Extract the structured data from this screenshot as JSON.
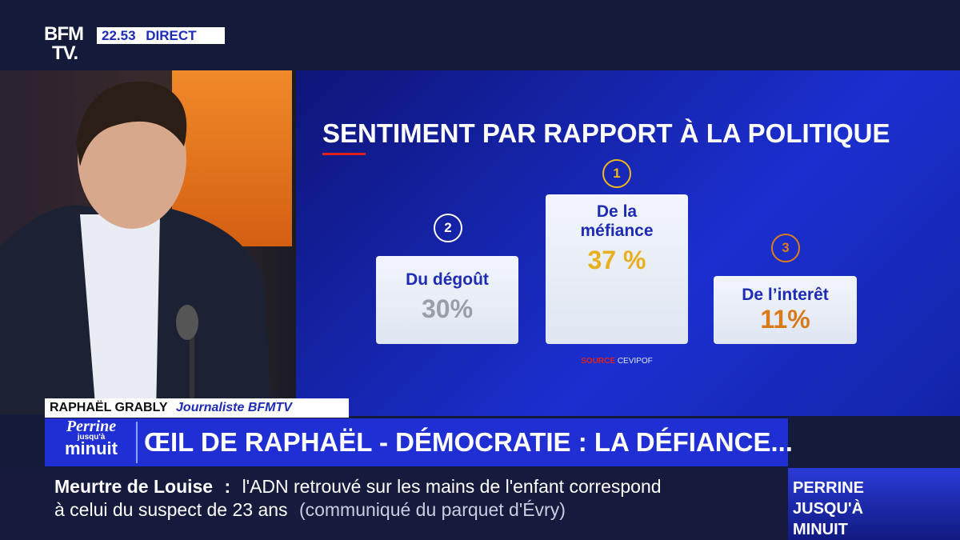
{
  "header": {
    "logo_line1": "BFM",
    "logo_line2": "TV.",
    "time": "22.53",
    "live": "DIRECT"
  },
  "graphic": {
    "title": "SENTIMENT PAR RAPPORT À LA POLITIQUE",
    "items": [
      {
        "rank": "2",
        "label": "Du dégoût",
        "value": "30%"
      },
      {
        "rank": "1",
        "label": "De la méfiance",
        "value": "37 %"
      },
      {
        "rank": "3",
        "label": "De l’interêt",
        "value": "11%"
      }
    ],
    "source_label": "SOURCE",
    "source": "CEVIPOF"
  },
  "lower_third": {
    "name": "RAPHAËL GRABLY",
    "role": "Journaliste BFMTV",
    "show_line1": "Perrine",
    "show_line2": "jusqu'à",
    "show_line3": "minuit",
    "headline": "ŒIL DE RAPHAËL - DÉMOCRATIE : LA DÉFIANCE..."
  },
  "ticker": {
    "topic": "Meurtre de Louise",
    "separator": ":",
    "text_line1": "l'ADN retrouvé sur les mains de l'enfant correspond",
    "text_line2": "à celui du suspect de 23 ans",
    "note": "(communiqué du parquet d'Évry)",
    "promo": "PERRINE JUSQU'À MINUIT"
  }
}
